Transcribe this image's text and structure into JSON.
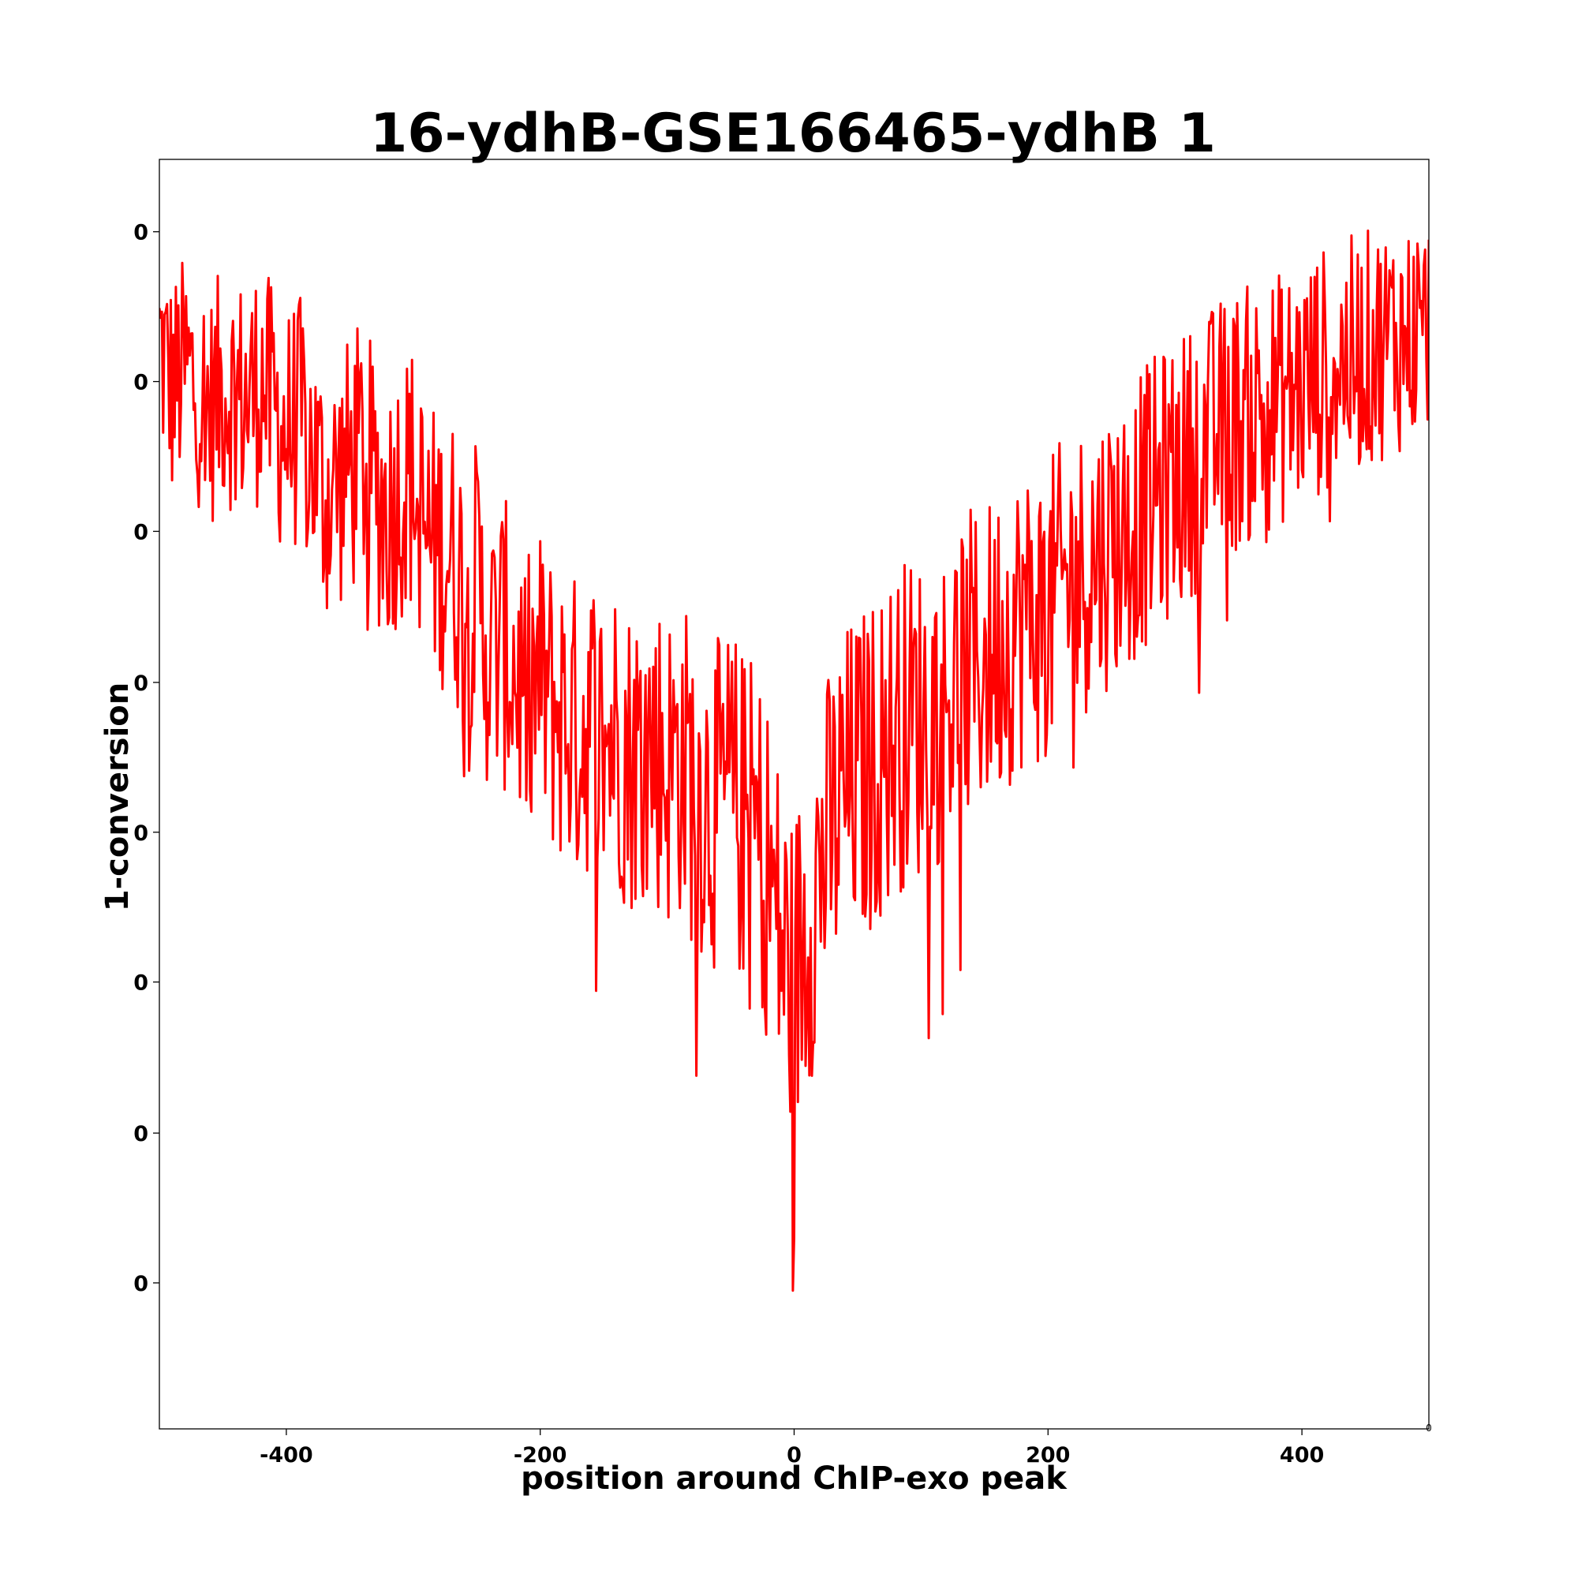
{
  "chart_data": {
    "type": "line",
    "title": "16-ydhB-GSE166465-ydhB 1",
    "xlabel": "position around ChIP-exo peak",
    "ylabel": "1-conversion",
    "xlim": [
      -500,
      500
    ],
    "ylim": [
      0,
      1.0
    ],
    "x_ticks": [
      -400,
      -200,
      0,
      200,
      400
    ],
    "x_tick_labels": [
      "-400",
      "-200",
      "0",
      "200",
      "400"
    ],
    "y_ticks": [
      0.115,
      0.233,
      0.352,
      0.47,
      0.588,
      0.707,
      0.825,
      0.943
    ],
    "y_tick_labels": [
      "0",
      "0",
      "0",
      "0",
      "0",
      "0",
      "0",
      "0"
    ],
    "corner_mark": "0",
    "grid": false,
    "series": [
      {
        "color": "#ff0000",
        "x_step": 1,
        "x": [
          -500,
          -490,
          -480,
          -470,
          -460,
          -450,
          -440,
          -430,
          -420,
          -410,
          -400,
          -390,
          -380,
          -370,
          -360,
          -350,
          -340,
          -330,
          -320,
          -310,
          -300,
          -290,
          -280,
          -270,
          -260,
          -250,
          -240,
          -230,
          -220,
          -210,
          -200,
          -190,
          -180,
          -170,
          -160,
          -150,
          -140,
          -130,
          -120,
          -110,
          -100,
          -90,
          -80,
          -70,
          -60,
          -50,
          -40,
          -30,
          -20,
          -10,
          0,
          10,
          20,
          30,
          40,
          50,
          60,
          70,
          80,
          90,
          100,
          110,
          120,
          130,
          140,
          150,
          160,
          170,
          180,
          190,
          200,
          210,
          220,
          230,
          240,
          250,
          260,
          270,
          280,
          290,
          300,
          310,
          320,
          330,
          340,
          350,
          360,
          370,
          380,
          390,
          400,
          410,
          420,
          430,
          440,
          450,
          460,
          470,
          480,
          490,
          500
        ],
        "values": [
          0.855,
          0.818,
          0.835,
          0.82,
          0.803,
          0.822,
          0.815,
          0.81,
          0.828,
          0.8,
          0.785,
          0.794,
          0.77,
          0.735,
          0.744,
          0.758,
          0.77,
          0.74,
          0.722,
          0.745,
          0.75,
          0.7,
          0.695,
          0.69,
          0.66,
          0.665,
          0.61,
          0.62,
          0.6,
          0.57,
          0.59,
          0.57,
          0.56,
          0.55,
          0.56,
          0.54,
          0.55,
          0.53,
          0.535,
          0.54,
          0.52,
          0.53,
          0.51,
          0.5,
          0.49,
          0.5,
          0.48,
          0.47,
          0.44,
          0.38,
          0.35,
          0.4,
          0.44,
          0.47,
          0.5,
          0.51,
          0.52,
          0.535,
          0.55,
          0.56,
          0.56,
          0.565,
          0.58,
          0.59,
          0.6,
          0.605,
          0.62,
          0.63,
          0.64,
          0.64,
          0.645,
          0.66,
          0.67,
          0.68,
          0.69,
          0.7,
          0.705,
          0.72,
          0.73,
          0.74,
          0.75,
          0.76,
          0.77,
          0.78,
          0.79,
          0.795,
          0.8,
          0.805,
          0.81,
          0.815,
          0.82,
          0.83,
          0.835,
          0.84,
          0.845,
          0.85,
          0.855,
          0.86,
          0.86,
          0.865,
          0.87
        ]
      }
    ]
  }
}
